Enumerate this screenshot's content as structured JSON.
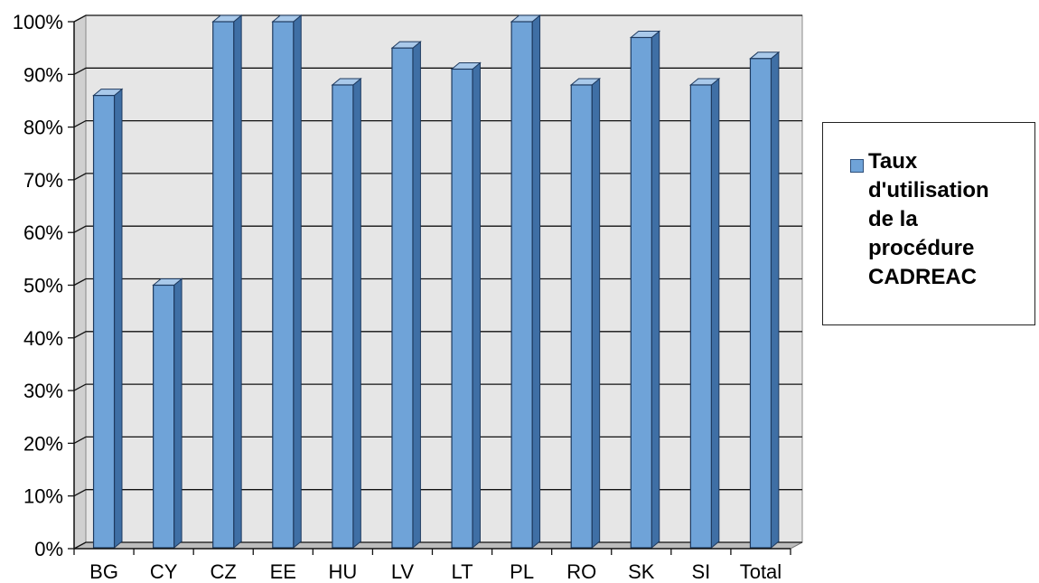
{
  "chart_data": {
    "type": "bar",
    "categories": [
      "BG",
      "CY",
      "CZ",
      "EE",
      "HU",
      "LV",
      "LT",
      "PL",
      "RO",
      "SK",
      "SI",
      "Total"
    ],
    "series": [
      {
        "name": "Taux d'utilisation de la procédure CADREAC",
        "values": [
          86,
          50,
          100,
          100,
          88,
          95,
          91,
          100,
          88,
          97,
          88,
          93
        ]
      }
    ],
    "ylim": [
      0,
      100
    ],
    "ytick_labels": [
      "0%",
      "10%",
      "20%",
      "30%",
      "40%",
      "50%",
      "60%",
      "70%",
      "80%",
      "90%",
      "100%"
    ],
    "grid": true,
    "legend_position": "right",
    "style": "3d-bar",
    "colors": {
      "bar_front": "#6fa3d8",
      "bar_side": "#3f6fa5",
      "bar_top": "#a9c9ea",
      "back_wall": "#e6e6e6",
      "floor": "#bdbdbd"
    }
  },
  "legend": {
    "label": "Taux\nd'utilisation\nde la\nprocédure\nCADREAC"
  }
}
